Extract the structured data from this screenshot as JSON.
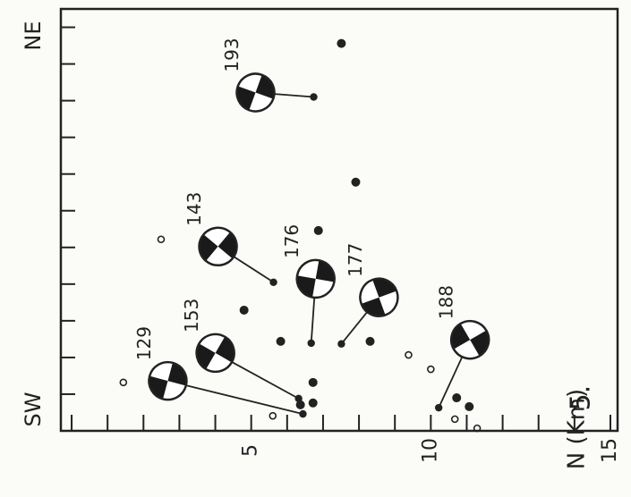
{
  "chart_data": {
    "type": "scatter",
    "xlabel": "N (Km)",
    "xlim": [
      -0.3,
      15.2
    ],
    "xticks": [
      5,
      10,
      15
    ],
    "xminor_ticks": [
      0,
      1,
      2,
      3,
      4,
      6,
      7,
      8,
      9,
      11,
      12,
      13,
      14
    ],
    "ylim": [
      0,
      11.5
    ],
    "yticks": [
      1,
      2,
      3,
      4,
      5,
      6,
      7,
      8,
      9,
      10,
      11
    ],
    "bottom_label": "SW",
    "top_label": "NE",
    "figure_label": "5.",
    "series": [
      {
        "marker": "filled",
        "color": "#222222",
        "x": [
          7.51,
          7.91,
          6.87,
          4.8,
          5.82,
          8.31,
          6.72,
          6.37,
          6.72,
          10.72,
          11.07
        ],
        "y": [
          10.56,
          6.78,
          5.46,
          3.29,
          2.44,
          2.44,
          1.32,
          0.71,
          0.76,
          0.9,
          0.66
        ]
      },
      {
        "marker": "open",
        "color": "#222222",
        "x": [
          2.49,
          1.44,
          5.6,
          9.38,
          10.0,
          10.67,
          11.29
        ],
        "y": [
          5.22,
          1.32,
          0.41,
          2.07,
          1.68,
          0.32,
          0.07
        ]
      }
    ],
    "mechanisms": [
      {
        "label": "193",
        "x": 6.74,
        "y": 9.1
      },
      {
        "label": "143",
        "x": 5.62,
        "y": 4.05
      },
      {
        "label": "176",
        "x": 6.67,
        "y": 2.39
      },
      {
        "label": "177",
        "x": 7.51,
        "y": 2.37
      },
      {
        "label": "188",
        "x": 10.22,
        "y": 0.63
      },
      {
        "label": "153",
        "x": 6.32,
        "y": 0.88
      },
      {
        "label": "129",
        "x": 6.44,
        "y": 0.46
      }
    ]
  }
}
